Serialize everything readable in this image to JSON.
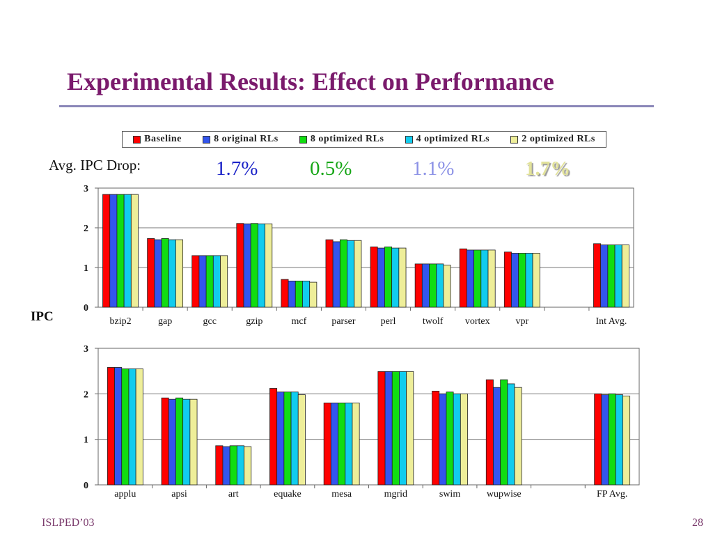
{
  "slide": {
    "title": "Experimental Results: Effect on Performance",
    "avg_drop_label": "Avg. IPC Drop:",
    "y_label": "IPC",
    "footer_left": "ISLPED’03",
    "page_number": "28"
  },
  "drops": [
    {
      "text": "1.7%",
      "color": "#1a22c8"
    },
    {
      "text": "0.5%",
      "color": "#16a616"
    },
    {
      "text": "1.1%",
      "color": "#8c92e6"
    },
    {
      "text": "1.7%",
      "color": "#e2e29a"
    }
  ],
  "legend": [
    {
      "label": "Baseline",
      "color": "#ff0000"
    },
    {
      "label": "8 original RLs",
      "color": "#3355ee"
    },
    {
      "label": "8 optimized RLs",
      "color": "#11dd11"
    },
    {
      "label": "4 optimized RLs",
      "color": "#11ccee"
    },
    {
      "label": "2 optimized RLs",
      "color": "#eeee99"
    }
  ],
  "chart_data": [
    {
      "type": "bar",
      "categories": [
        "bzip2",
        "gap",
        "gcc",
        "gzip",
        "mcf",
        "parser",
        "perl",
        "twolf",
        "vortex",
        "vpr",
        "",
        "Int Avg."
      ],
      "ylim": [
        0,
        3
      ],
      "yticks": [
        0,
        1,
        2,
        3
      ],
      "grid": true,
      "series": [
        {
          "name": "Baseline",
          "values": [
            2.84,
            1.73,
            1.3,
            2.11,
            0.7,
            1.7,
            1.52,
            1.09,
            1.47,
            1.39,
            null,
            1.6
          ]
        },
        {
          "name": "8 original RLs",
          "values": [
            2.84,
            1.7,
            1.3,
            2.1,
            0.66,
            1.65,
            1.49,
            1.09,
            1.44,
            1.36,
            null,
            1.57
          ]
        },
        {
          "name": "8 optimized RLs",
          "values": [
            2.84,
            1.73,
            1.3,
            2.11,
            0.66,
            1.7,
            1.52,
            1.09,
            1.44,
            1.36,
            null,
            1.57
          ]
        },
        {
          "name": "4 optimized RLs",
          "values": [
            2.84,
            1.7,
            1.3,
            2.1,
            0.66,
            1.68,
            1.49,
            1.09,
            1.44,
            1.36,
            null,
            1.57
          ]
        },
        {
          "name": "2 optimized RLs",
          "values": [
            2.84,
            1.7,
            1.3,
            2.1,
            0.63,
            1.68,
            1.49,
            1.06,
            1.44,
            1.36,
            null,
            1.57
          ]
        }
      ]
    },
    {
      "type": "bar",
      "categories": [
        "applu",
        "apsi",
        "art",
        "equake",
        "mesa",
        "mgrid",
        "swim",
        "wupwise",
        "",
        "FP Avg."
      ],
      "ylim": [
        0,
        3
      ],
      "yticks": [
        0,
        1,
        2,
        3
      ],
      "grid": true,
      "series": [
        {
          "name": "Baseline",
          "values": [
            2.58,
            1.91,
            0.86,
            2.12,
            1.8,
            2.49,
            2.06,
            2.31,
            null,
            2.0
          ]
        },
        {
          "name": "8 original RLs",
          "values": [
            2.58,
            1.88,
            0.84,
            2.04,
            1.8,
            2.49,
            2.0,
            2.14,
            null,
            1.98
          ]
        },
        {
          "name": "8 optimized RLs",
          "values": [
            2.55,
            1.91,
            0.86,
            2.04,
            1.8,
            2.49,
            2.04,
            2.31,
            null,
            2.0
          ]
        },
        {
          "name": "4 optimized RLs",
          "values": [
            2.55,
            1.88,
            0.86,
            2.04,
            1.8,
            2.49,
            2.0,
            2.22,
            null,
            1.98
          ]
        },
        {
          "name": "2 optimized RLs",
          "values": [
            2.55,
            1.88,
            0.84,
            1.98,
            1.8,
            2.49,
            2.0,
            2.14,
            null,
            1.95
          ]
        }
      ]
    }
  ]
}
